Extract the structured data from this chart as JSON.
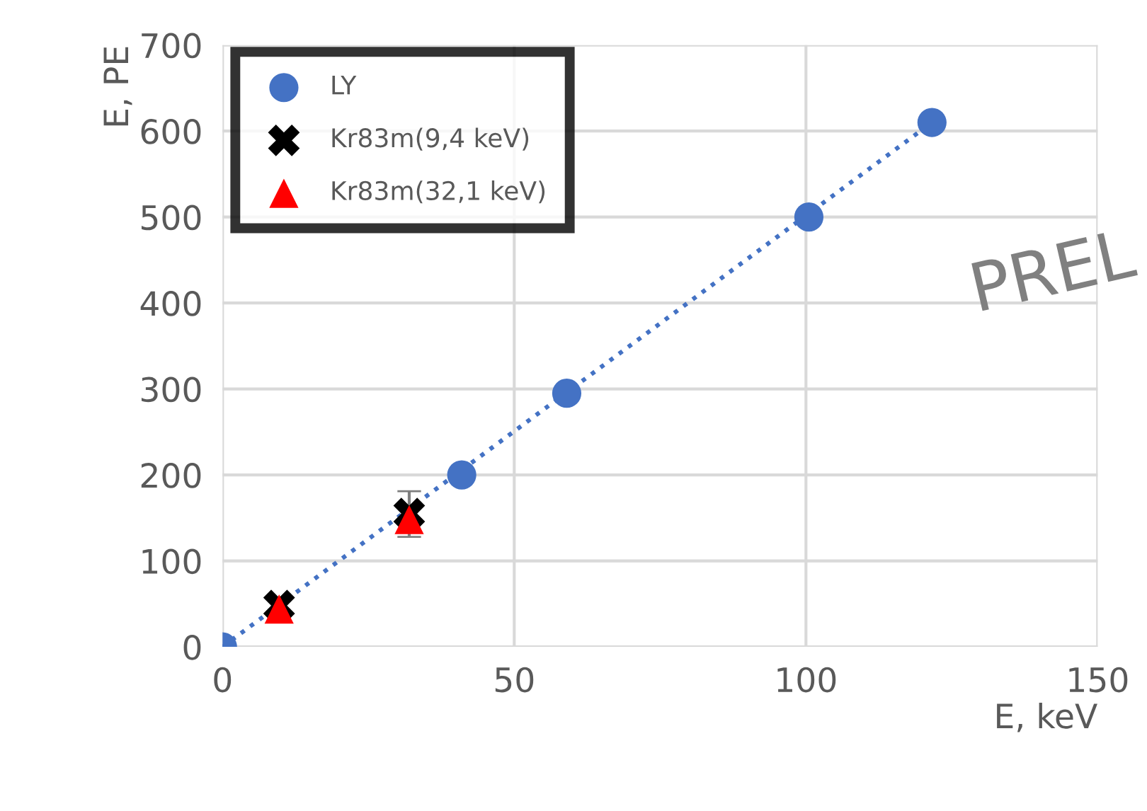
{
  "chart_data": {
    "type": "scatter",
    "xlabel": "E, keV",
    "ylabel": "E, PE",
    "xlim": [
      0,
      150
    ],
    "ylim": [
      0,
      700
    ],
    "xticks": [
      0,
      50,
      100,
      150
    ],
    "yticks": [
      0,
      100,
      200,
      300,
      400,
      500,
      600,
      700
    ],
    "grid": true,
    "legend": "top left",
    "annotations": [
      "PREL"
    ],
    "series": [
      {
        "name": "LY",
        "marker": "circle",
        "color": "#4472c4",
        "x": [
          0,
          41,
          59,
          100.5,
          121.6
        ],
        "values": [
          0,
          200,
          295,
          500,
          610
        ]
      },
      {
        "type": "line",
        "line_style": "dotted",
        "marker": "none",
        "color": "#4472c4",
        "x": [
          0,
          121.6
        ],
        "values": [
          0,
          610
        ]
      },
      {
        "name": "Kr83m(9,4 keV)",
        "marker": "cross",
        "color": "#000000",
        "x": [
          9.7,
          32
        ],
        "values": [
          48,
          155
        ]
      },
      {
        "name": "Kr83m(32,1 keV)",
        "marker": "triangle",
        "color": "#ff0000",
        "x": [
          9.7,
          32
        ],
        "values": [
          44,
          148
        ],
        "errors": [
          null,
          [
            128,
            181
          ]
        ]
      }
    ]
  }
}
